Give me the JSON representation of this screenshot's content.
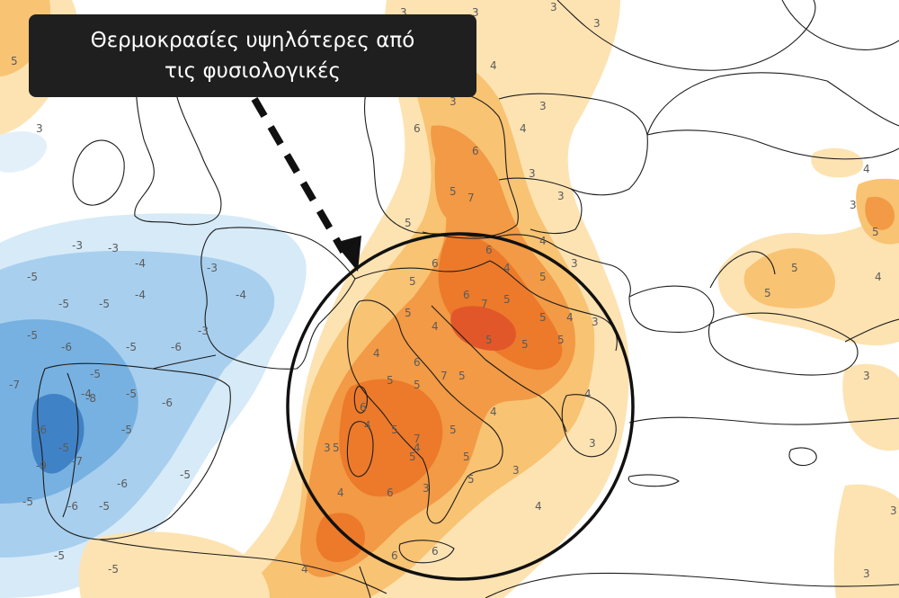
{
  "callout": {
    "line1": "Θερμοκρασίες υψηλότερες από",
    "line2": "τις φυσιολογικές"
  },
  "colors": {
    "warm_light": "#fde3b2",
    "warm": "#f8c373",
    "warm_mid": "#f29a45",
    "warm_strong": "#ec7a2a",
    "hot": "#e2572a",
    "cold_light": "#c9e3f5",
    "cold": "#a5cdee",
    "cold_mid": "#73aee0",
    "cold_strong": "#3f7fc4",
    "border_line": "#1c1c1c",
    "callout_bg": "#1f1f1f",
    "callout_text": "#ffffff"
  },
  "anomaly_labels": [
    "5",
    "3",
    "5",
    "3",
    "3",
    "3",
    "3",
    "4",
    "5",
    "3",
    "3",
    "4",
    "6",
    "3",
    "6",
    "3",
    "5",
    "7",
    "5",
    "4",
    "6",
    "3",
    "6",
    "4",
    "5",
    "5",
    "6",
    "7",
    "5",
    "5",
    "5",
    "4",
    "4",
    "3",
    "5",
    "5",
    "5",
    "4",
    "6",
    "6",
    "5",
    "5",
    "7",
    "5",
    "4",
    "4",
    "5",
    "4",
    "5",
    "7",
    "5",
    "5",
    "5",
    "4",
    "3",
    "3",
    "3",
    "3",
    "4",
    "6",
    "5",
    "6",
    "6",
    "4",
    "4",
    "5",
    "5",
    "5",
    "4",
    "3",
    "3",
    "4",
    "3",
    "3",
    "-3",
    "-3",
    "-5",
    "-4",
    "-3",
    "-5",
    "-5",
    "-4",
    "-4",
    "-3",
    "-5",
    "-6",
    "-5",
    "-6",
    "-5",
    "-5",
    "-4",
    "-7",
    "-8",
    "-6",
    "-5",
    "-6",
    "-5",
    "-9",
    "-7",
    "-6",
    "-5",
    "-6",
    "-5",
    "-5",
    "-5",
    "-5"
  ]
}
